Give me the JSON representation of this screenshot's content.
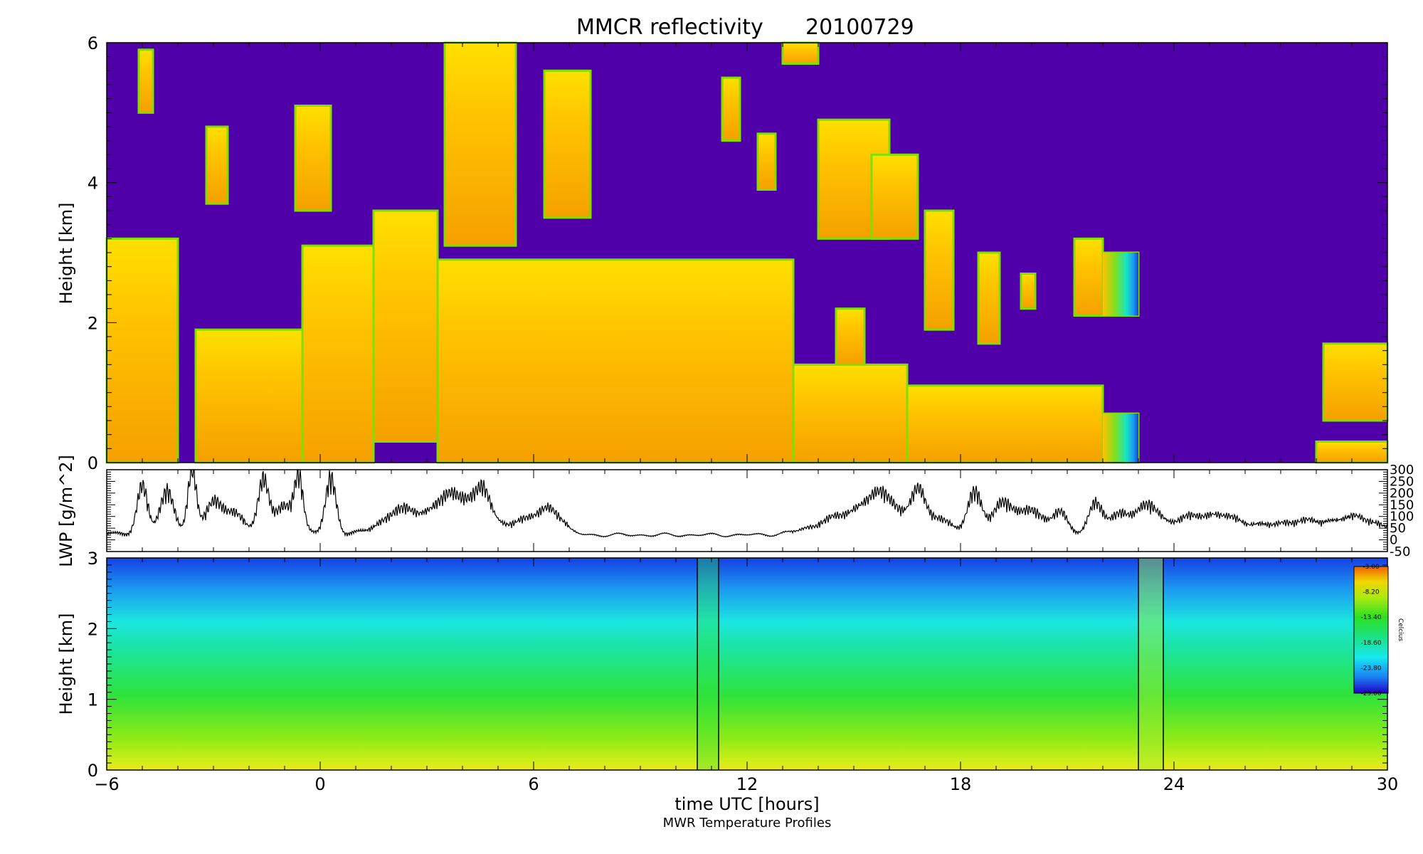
{
  "chart_data": [
    {
      "type": "heatmap",
      "title": "MMCR reflectivity",
      "date": "20100729",
      "ylabel": "Height [km]",
      "ylim": [
        0,
        6
      ],
      "yticks": [
        "0",
        "2",
        "4",
        "6"
      ],
      "xlim": [
        -6,
        30
      ],
      "cloud_regions": [
        {
          "x": [
            -6.0,
            -4.0
          ],
          "y": [
            0.0,
            3.2
          ]
        },
        {
          "x": [
            -3.5,
            1.5
          ],
          "y": [
            0.0,
            1.9
          ]
        },
        {
          "x": [
            -0.5,
            1.5
          ],
          "y": [
            0.0,
            3.1
          ]
        },
        {
          "x": [
            1.5,
            3.3
          ],
          "y": [
            0.3,
            3.6
          ]
        },
        {
          "x": [
            3.3,
            13.3
          ],
          "y": [
            0.0,
            2.9
          ]
        },
        {
          "x": [
            13.3,
            16.5
          ],
          "y": [
            0.0,
            1.4
          ]
        },
        {
          "x": [
            16.5,
            22.0
          ],
          "y": [
            0.0,
            1.1
          ]
        },
        {
          "x": [
            22.0,
            23.0
          ],
          "y": [
            0.0,
            0.7
          ]
        },
        {
          "x": [
            28.0,
            30.0
          ],
          "y": [
            0.0,
            0.3
          ]
        },
        {
          "x": [
            28.2,
            30.0
          ],
          "y": [
            0.6,
            1.7
          ]
        },
        {
          "x": [
            3.5,
            5.5
          ],
          "y": [
            3.1,
            6.0
          ]
        },
        {
          "x": [
            6.3,
            7.6
          ],
          "y": [
            3.5,
            5.6
          ]
        },
        {
          "x": [
            14.0,
            16.0
          ],
          "y": [
            3.2,
            4.9
          ]
        },
        {
          "x": [
            21.2,
            22.0
          ],
          "y": [
            2.1,
            3.2
          ]
        },
        {
          "x": [
            22.0,
            23.0
          ],
          "y": [
            2.1,
            3.0
          ]
        },
        {
          "x": [
            17.0,
            17.8
          ],
          "y": [
            1.9,
            3.6
          ]
        },
        {
          "x": [
            18.5,
            19.1
          ],
          "y": [
            1.7,
            3.0
          ]
        },
        {
          "x": [
            19.7,
            20.1
          ],
          "y": [
            2.2,
            2.7
          ]
        },
        {
          "x": [
            -5.1,
            -4.7
          ],
          "y": [
            5.0,
            5.9
          ]
        },
        {
          "x": [
            11.3,
            11.8
          ],
          "y": [
            4.6,
            5.5
          ]
        },
        {
          "x": [
            12.3,
            12.8
          ],
          "y": [
            3.9,
            4.7
          ]
        },
        {
          "x": [
            -3.2,
            -2.6
          ],
          "y": [
            3.7,
            4.8
          ]
        },
        {
          "x": [
            -0.7,
            0.3
          ],
          "y": [
            3.6,
            5.1
          ]
        },
        {
          "x": [
            15.5,
            16.8
          ],
          "y": [
            3.2,
            4.4
          ]
        },
        {
          "x": [
            14.5,
            15.3
          ],
          "y": [
            1.4,
            2.2
          ]
        },
        {
          "x": [
            13.0,
            14.0
          ],
          "y": [
            5.7,
            6.0
          ]
        }
      ],
      "colors": {
        "background": "#5000A8",
        "cloud_low": "#FFD500",
        "cloud_high": "#F59B00",
        "edge": "#7FE000"
      }
    },
    {
      "type": "line",
      "ylabel": "LWP [g/m^2]",
      "ylim": [
        -50,
        300
      ],
      "yticks": [
        "-50",
        "0",
        "50",
        "100",
        "150",
        "200",
        "250",
        "300"
      ],
      "xlim": [
        -6,
        30
      ],
      "color": "#000000"
    },
    {
      "type": "heatmap",
      "title": "MWR Temperature Profiles",
      "xlabel": "time UTC [hours]",
      "ylabel": "Height [km]",
      "ylim": [
        0,
        3
      ],
      "yticks": [
        "0",
        "1",
        "2",
        "3"
      ],
      "xlim": [
        -6,
        30
      ],
      "xticks": [
        "−6",
        "0",
        "6",
        "12",
        "18",
        "24",
        "30"
      ],
      "vertical_lines": [
        10.6,
        11.2,
        23.0,
        23.7
      ],
      "colorbar": {
        "label": "Celcius",
        "ticks": [
          "-3.00",
          "-8.20",
          "-13.40",
          "-18.60",
          "-23.80",
          "-29.00"
        ],
        "range": [
          -29.0,
          -3.0
        ]
      }
    }
  ]
}
